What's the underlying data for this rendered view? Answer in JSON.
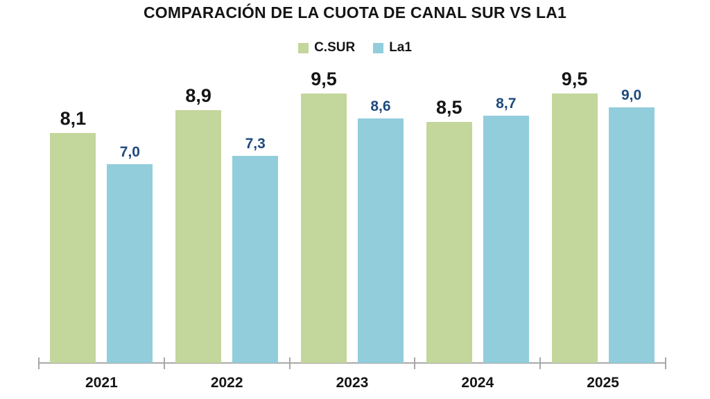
{
  "chart_data": {
    "type": "bar",
    "title": "COMPARACIÓN DE LA CUOTA DE CANAL SUR VS LA1",
    "categories": [
      "2021",
      "2022",
      "2023",
      "2024",
      "2025"
    ],
    "series": [
      {
        "name": "C.SUR",
        "color": "#C3D69B",
        "label_color": "#151515",
        "values": [
          8.1,
          8.9,
          9.5,
          8.5,
          9.5
        ],
        "labels": [
          "8,1",
          "8,9",
          "9,5",
          "8,5",
          "9,5"
        ]
      },
      {
        "name": "La1",
        "color": "#92CDDC",
        "label_color": "#1F497D",
        "values": [
          7.0,
          7.3,
          8.6,
          8.7,
          9.0
        ],
        "labels": [
          "7,0",
          "7,3",
          "8,6",
          "8,7",
          "9,0"
        ]
      }
    ],
    "xlabel": "",
    "ylabel": "",
    "ylim": [
      0,
      10
    ],
    "grid": false,
    "legend_position": "top",
    "axis_color": "#A8A8A8",
    "background": "#FFFFFF",
    "decimal_separator": ","
  }
}
